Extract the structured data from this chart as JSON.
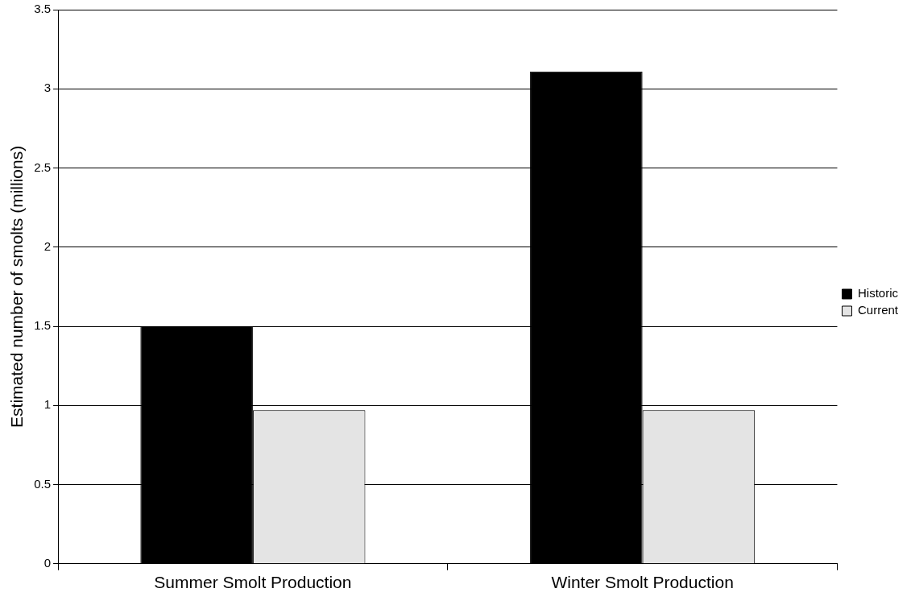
{
  "chart_data": {
    "type": "bar",
    "ylabel": "Estimated number of smolts (millions)",
    "categories": [
      "Summer Smolt Production",
      "Winter Smolt Production"
    ],
    "series": [
      {
        "name": "Historic",
        "color": "#000000",
        "values": [
          1.5,
          3.11
        ]
      },
      {
        "name": "Current",
        "color": "#e4e4e4",
        "values": [
          0.97,
          0.97
        ]
      }
    ],
    "ylim": [
      0,
      3.5
    ],
    "yticks": [
      0,
      0.5,
      1,
      1.5,
      2,
      2.5,
      3,
      3.5
    ],
    "grid": "y",
    "legend": "right"
  }
}
